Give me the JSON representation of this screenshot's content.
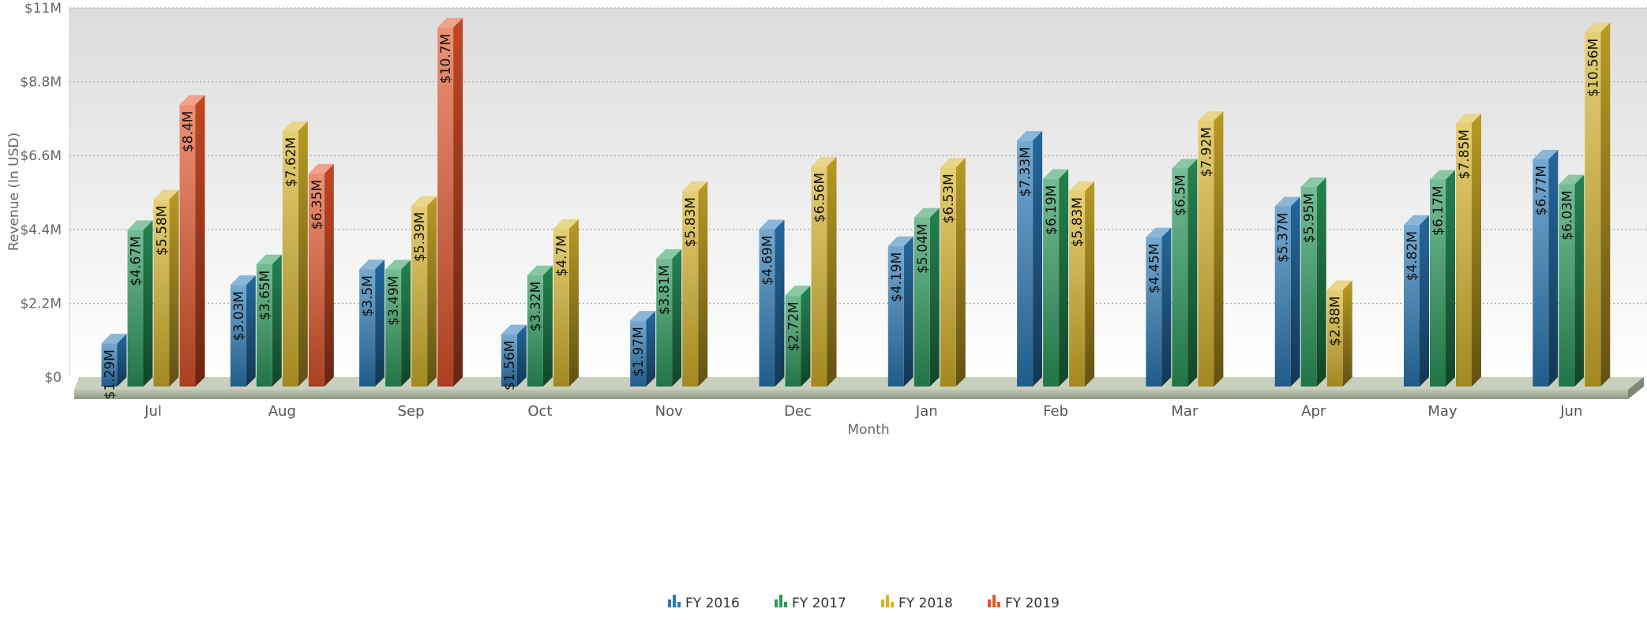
{
  "chart_data": {
    "type": "bar",
    "title": "",
    "xlabel": "Month",
    "ylabel": "Revenue (In USD)",
    "ylim": [
      0,
      11000000
    ],
    "yticks": [
      {
        "value": 0,
        "label": "$0"
      },
      {
        "value": 2200000,
        "label": "$2.2M"
      },
      {
        "value": 4400000,
        "label": "$4.4M"
      },
      {
        "value": 6600000,
        "label": "$6.6M"
      },
      {
        "value": 8800000,
        "label": "$8.8M"
      },
      {
        "value": 11000000,
        "label": "$11M"
      }
    ],
    "grid": true,
    "legend_position": "bottom",
    "categories": [
      "Jul",
      "Aug",
      "Sep",
      "Oct",
      "Nov",
      "Dec",
      "Jan",
      "Feb",
      "Mar",
      "Apr",
      "May",
      "Jun"
    ],
    "series": [
      {
        "name": "FY 2016",
        "color": "#2a7ab8",
        "values": [
          1290000,
          3030000,
          3500000,
          1560000,
          1970000,
          4690000,
          4190000,
          7330000,
          4450000,
          5370000,
          4820000,
          6770000
        ],
        "labels": [
          "$1.29M",
          "$3.03M",
          "$3.5M",
          "$1.56M",
          "$1.97M",
          "$4.69M",
          "$4.19M",
          "$7.33M",
          "$4.45M",
          "$5.37M",
          "$4.82M",
          "$6.77M"
        ]
      },
      {
        "name": "FY 2017",
        "color": "#2a9a5c",
        "values": [
          4670000,
          3650000,
          3490000,
          3320000,
          3810000,
          2720000,
          5040000,
          6190000,
          6500000,
          5950000,
          6170000,
          6030000
        ],
        "labels": [
          "$4.67M",
          "$3.65M",
          "$3.49M",
          "$3.32M",
          "$3.81M",
          "$2.72M",
          "$5.04M",
          "$6.19M",
          "$6.5M",
          "$5.95M",
          "$6.17M",
          "$6.03M"
        ]
      },
      {
        "name": "FY 2018",
        "color": "#d9b52a",
        "values": [
          5580000,
          7620000,
          5390000,
          4700000,
          5830000,
          6560000,
          6530000,
          5830000,
          7920000,
          2880000,
          7850000,
          10560000
        ],
        "labels": [
          "$5.58M",
          "$7.62M",
          "$5.39M",
          "$4.7M",
          "$5.83M",
          "$6.56M",
          "$6.53M",
          "$5.83M",
          "$7.92M",
          "$2.88M",
          "$7.85M",
          "$10.56M"
        ]
      },
      {
        "name": "FY 2019",
        "color": "#e4552a",
        "values": [
          8400000,
          6350000,
          10700000,
          null,
          null,
          null,
          null,
          null,
          null,
          null,
          null,
          null
        ],
        "labels": [
          "$8.4M",
          "$6.35M",
          "$10.7M",
          null,
          null,
          null,
          null,
          null,
          null,
          null,
          null,
          null
        ]
      }
    ]
  }
}
